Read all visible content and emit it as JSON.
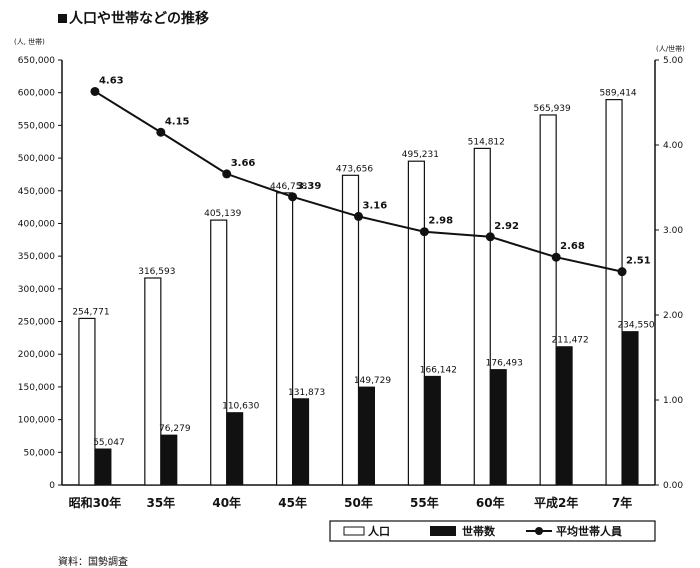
{
  "title": "人口や世帯などの推移",
  "source": "資料：国勢調査",
  "unit_left": "(人, 世帯)",
  "unit_right": "(人/世帯)",
  "chart_data": {
    "type": "bar",
    "categories": [
      "昭和30年",
      "35年",
      "40年",
      "45年",
      "50年",
      "55年",
      "60年",
      "平成2年",
      "7年"
    ],
    "series": [
      {
        "name": "人口",
        "kind": "bar",
        "axis": "left",
        "color": "#ffffff",
        "values": [
          254771,
          316593,
          405139,
          446758,
          473656,
          495231,
          514812,
          565939,
          589414
        ],
        "labels": [
          "254,771",
          "316,593",
          "405,139",
          "446,758",
          "473,656",
          "495,231",
          "514,812",
          "565,939",
          "589,414"
        ]
      },
      {
        "name": "世帯数",
        "kind": "bar",
        "axis": "left",
        "color": "#111111",
        "values": [
          55047,
          76279,
          110630,
          131873,
          149729,
          166142,
          176493,
          211472,
          234550
        ],
        "labels": [
          "55,047",
          "76,279",
          "110,630",
          "131,873",
          "149,729",
          "166,142",
          "176,493",
          "211,472",
          "234,550"
        ]
      },
      {
        "name": "平均世帯人員",
        "kind": "line",
        "axis": "right",
        "color": "#111111",
        "values": [
          4.63,
          4.15,
          3.66,
          3.39,
          3.16,
          2.98,
          2.92,
          2.68,
          2.51
        ],
        "labels": [
          "4.63",
          "4.15",
          "3.66",
          "3.39",
          "3.16",
          "2.98",
          "2.92",
          "2.68",
          "2.51"
        ]
      }
    ],
    "y_left": {
      "min": 0,
      "max": 650000,
      "ticks": [
        0,
        50000,
        100000,
        150000,
        200000,
        250000,
        300000,
        350000,
        400000,
        450000,
        500000,
        550000,
        600000,
        650000
      ],
      "tick_labels": [
        "0",
        "50,000",
        "100,000",
        "150,000",
        "200,000",
        "250,000",
        "300,000",
        "350,000",
        "400,000",
        "450,000",
        "500,000",
        "550,000",
        "600,000",
        "650,000"
      ]
    },
    "y_right": {
      "min": 0,
      "max": 5,
      "ticks": [
        0,
        1,
        2,
        3,
        4,
        5
      ],
      "tick_labels": [
        "0.00",
        "1.00",
        "2.00",
        "3.00",
        "4.00",
        "5.00"
      ]
    },
    "grid": false,
    "legend_position": "bottom-right"
  }
}
